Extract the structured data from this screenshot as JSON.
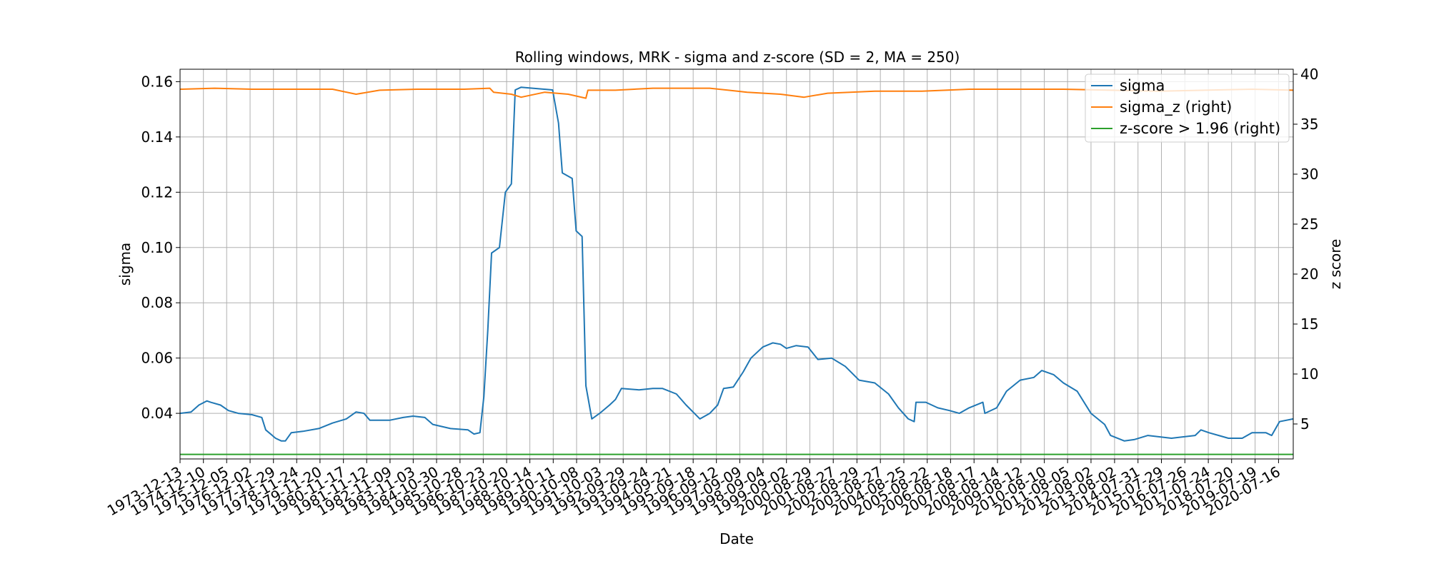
{
  "chart_data": {
    "type": "line",
    "title": "Rolling windows, MRK - sigma and z-score (SD = 2, MA = 250)",
    "xlabel": "Date",
    "ylabel": "sigma",
    "y2label": "z score",
    "ylim": [
      0.0235,
      0.1645
    ],
    "y2lim": [
      1.5,
      40.5
    ],
    "yticks": [
      "0.04",
      "0.06",
      "0.08",
      "0.10",
      "0.12",
      "0.14",
      "0.16"
    ],
    "y2ticks": [
      "5",
      "10",
      "15",
      "20",
      "25",
      "30",
      "35",
      "40"
    ],
    "grid": true,
    "legend_position": "top-right",
    "xlim": [
      "1973-12-13",
      "2021-03-01"
    ],
    "x_tick_labels": [
      "1973-12-13",
      "1974-12-10",
      "1975-12-05",
      "1976-12-02",
      "1977-11-29",
      "1978-11-24",
      "1979-11-20",
      "1980-11-17",
      "1981-11-12",
      "1982-11-09",
      "1983-11-03",
      "1984-10-30",
      "1985-10-28",
      "1986-10-23",
      "1987-10-20",
      "1988-10-14",
      "1989-10-11",
      "1990-10-08",
      "1991-10-03",
      "1992-09-29",
      "1993-09-24",
      "1994-09-21",
      "1995-09-18",
      "1996-09-12",
      "1997-09-09",
      "1998-09-04",
      "1999-09-02",
      "2000-08-29",
      "2001-08-27",
      "2002-08-29",
      "2003-08-27",
      "2004-08-25",
      "2005-08-22",
      "2006-08-18",
      "2007-08-17",
      "2008-08-14",
      "2009-08-12",
      "2010-08-10",
      "2011-08-05",
      "2012-08-02",
      "2013-08-02",
      "2014-07-31",
      "2015-07-29",
      "2016-07-26",
      "2017-07-24",
      "2018-07-20",
      "2019-07-19",
      "2020-07-16"
    ],
    "series": [
      {
        "name": "sigma",
        "axis": "left",
        "color": "#1f77b4",
        "points": [
          [
            "1973-12-13",
            0.04
          ],
          [
            "1974-06-01",
            0.0405
          ],
          [
            "1974-10-01",
            0.043
          ],
          [
            "1975-02-01",
            0.0445
          ],
          [
            "1975-04-01",
            0.044
          ],
          [
            "1975-09-01",
            0.043
          ],
          [
            "1976-01-01",
            0.041
          ],
          [
            "1976-06-01",
            0.04
          ],
          [
            "1977-01-01",
            0.0395
          ],
          [
            "1977-06-01",
            0.0385
          ],
          [
            "1977-08-01",
            0.034
          ],
          [
            "1978-01-01",
            0.031
          ],
          [
            "1978-04-01",
            0.03
          ],
          [
            "1978-06-01",
            0.03
          ],
          [
            "1978-09-01",
            0.033
          ],
          [
            "1979-03-01",
            0.0335
          ],
          [
            "1979-11-01",
            0.0345
          ],
          [
            "1980-06-01",
            0.0365
          ],
          [
            "1981-01-01",
            0.038
          ],
          [
            "1981-06-01",
            0.0405
          ],
          [
            "1981-10-01",
            0.04
          ],
          [
            "1982-01-01",
            0.0375
          ],
          [
            "1982-11-01",
            0.0375
          ],
          [
            "1983-06-01",
            0.0385
          ],
          [
            "1983-11-01",
            0.039
          ],
          [
            "1984-05-01",
            0.0385
          ],
          [
            "1984-09-01",
            0.036
          ],
          [
            "1985-06-01",
            0.0345
          ],
          [
            "1986-03-01",
            0.034
          ],
          [
            "1986-06-01",
            0.0325
          ],
          [
            "1986-09-01",
            0.033
          ],
          [
            "1986-11-01",
            0.046
          ],
          [
            "1987-01-01",
            0.07
          ],
          [
            "1987-03-01",
            0.098
          ],
          [
            "1987-07-01",
            0.1
          ],
          [
            "1987-10-01",
            0.12
          ],
          [
            "1988-01-01",
            0.123
          ],
          [
            "1988-03-01",
            0.157
          ],
          [
            "1988-06-01",
            0.158
          ],
          [
            "1989-10-01",
            0.157
          ],
          [
            "1990-01-01",
            0.145
          ],
          [
            "1990-03-01",
            0.127
          ],
          [
            "1990-08-01",
            0.125
          ],
          [
            "1990-10-01",
            0.106
          ],
          [
            "1991-01-01",
            0.104
          ],
          [
            "1991-03-01",
            0.05
          ],
          [
            "1991-06-01",
            0.038
          ],
          [
            "1991-10-01",
            0.04
          ],
          [
            "1992-03-01",
            0.043
          ],
          [
            "1992-06-01",
            0.045
          ],
          [
            "1992-09-01",
            0.049
          ],
          [
            "1993-06-01",
            0.0485
          ],
          [
            "1994-01-01",
            0.049
          ],
          [
            "1994-06-01",
            0.049
          ],
          [
            "1995-01-01",
            0.047
          ],
          [
            "1995-06-01",
            0.043
          ],
          [
            "1996-01-01",
            0.038
          ],
          [
            "1996-06-01",
            0.04
          ],
          [
            "1996-10-01",
            0.043
          ],
          [
            "1997-01-01",
            0.049
          ],
          [
            "1997-06-01",
            0.0495
          ],
          [
            "1997-11-01",
            0.055
          ],
          [
            "1998-03-01",
            0.06
          ],
          [
            "1998-09-01",
            0.064
          ],
          [
            "1999-02-01",
            0.0655
          ],
          [
            "1999-06-01",
            0.065
          ],
          [
            "1999-09-01",
            0.0635
          ],
          [
            "2000-02-01",
            0.0645
          ],
          [
            "2000-08-01",
            0.064
          ],
          [
            "2001-01-01",
            0.0595
          ],
          [
            "2001-08-01",
            0.06
          ],
          [
            "2002-03-01",
            0.057
          ],
          [
            "2002-10-01",
            0.052
          ],
          [
            "2003-06-01",
            0.051
          ],
          [
            "2004-01-01",
            0.047
          ],
          [
            "2004-06-01",
            0.042
          ],
          [
            "2004-11-01",
            0.038
          ],
          [
            "2005-02-01",
            0.037
          ],
          [
            "2005-03-01",
            0.044
          ],
          [
            "2005-08-01",
            0.044
          ],
          [
            "2006-02-01",
            0.042
          ],
          [
            "2006-08-01",
            0.041
          ],
          [
            "2007-01-01",
            0.04
          ],
          [
            "2007-06-01",
            0.042
          ],
          [
            "2008-01-01",
            0.044
          ],
          [
            "2008-02-01",
            0.04
          ],
          [
            "2008-08-01",
            0.042
          ],
          [
            "2009-01-01",
            0.048
          ],
          [
            "2009-08-01",
            0.052
          ],
          [
            "2010-03-01",
            0.053
          ],
          [
            "2010-07-01",
            0.0555
          ],
          [
            "2011-01-01",
            0.054
          ],
          [
            "2011-06-01",
            0.051
          ],
          [
            "2012-01-01",
            0.048
          ],
          [
            "2012-08-01",
            0.04
          ],
          [
            "2013-03-01",
            0.036
          ],
          [
            "2013-06-01",
            0.032
          ],
          [
            "2014-01-01",
            0.03
          ],
          [
            "2014-06-01",
            0.0305
          ],
          [
            "2015-01-01",
            0.032
          ],
          [
            "2016-01-01",
            0.031
          ],
          [
            "2017-01-01",
            0.032
          ],
          [
            "2017-04-01",
            0.034
          ],
          [
            "2017-08-01",
            0.033
          ],
          [
            "2018-01-01",
            0.032
          ],
          [
            "2018-06-01",
            0.031
          ],
          [
            "2019-01-01",
            0.031
          ],
          [
            "2019-06-01",
            0.033
          ],
          [
            "2020-01-01",
            0.033
          ],
          [
            "2020-04-01",
            0.032
          ],
          [
            "2020-08-01",
            0.037
          ],
          [
            "2021-03-01",
            0.038
          ]
        ]
      },
      {
        "name": "sigma_z (right)",
        "axis": "right",
        "color": "#ff7f0e",
        "points": [
          [
            "1973-12-13",
            38.5
          ],
          [
            "1975-06-01",
            38.6
          ],
          [
            "1977-01-01",
            38.5
          ],
          [
            "1978-06-01",
            38.5
          ],
          [
            "1980-06-01",
            38.5
          ],
          [
            "1981-06-01",
            38.0
          ],
          [
            "1982-06-01",
            38.4
          ],
          [
            "1984-01-01",
            38.5
          ],
          [
            "1986-01-01",
            38.5
          ],
          [
            "1987-02-01",
            38.6
          ],
          [
            "1987-04-01",
            38.2
          ],
          [
            "1988-01-01",
            38.0
          ],
          [
            "1988-06-01",
            37.7
          ],
          [
            "1989-06-01",
            38.2
          ],
          [
            "1990-06-01",
            38.0
          ],
          [
            "1991-03-01",
            37.6
          ],
          [
            "1991-04-01",
            38.4
          ],
          [
            "1992-06-01",
            38.4
          ],
          [
            "1994-01-01",
            38.6
          ],
          [
            "1996-06-01",
            38.6
          ],
          [
            "1998-01-01",
            38.2
          ],
          [
            "1999-06-01",
            38.0
          ],
          [
            "2000-06-01",
            37.7
          ],
          [
            "2001-06-01",
            38.1
          ],
          [
            "2003-06-01",
            38.3
          ],
          [
            "2005-06-01",
            38.3
          ],
          [
            "2007-06-01",
            38.5
          ],
          [
            "2009-06-01",
            38.5
          ],
          [
            "2011-06-01",
            38.5
          ],
          [
            "2013-06-01",
            38.4
          ],
          [
            "2015-06-01",
            38.3
          ],
          [
            "2017-06-01",
            38.4
          ],
          [
            "2019-06-01",
            38.5
          ],
          [
            "2021-03-01",
            38.4
          ]
        ]
      },
      {
        "name": "z-score > 1.96 (right)",
        "axis": "right",
        "color": "#2ca02c",
        "points": [
          [
            "1973-12-13",
            1.96
          ],
          [
            "2021-03-01",
            1.96
          ]
        ]
      }
    ]
  }
}
